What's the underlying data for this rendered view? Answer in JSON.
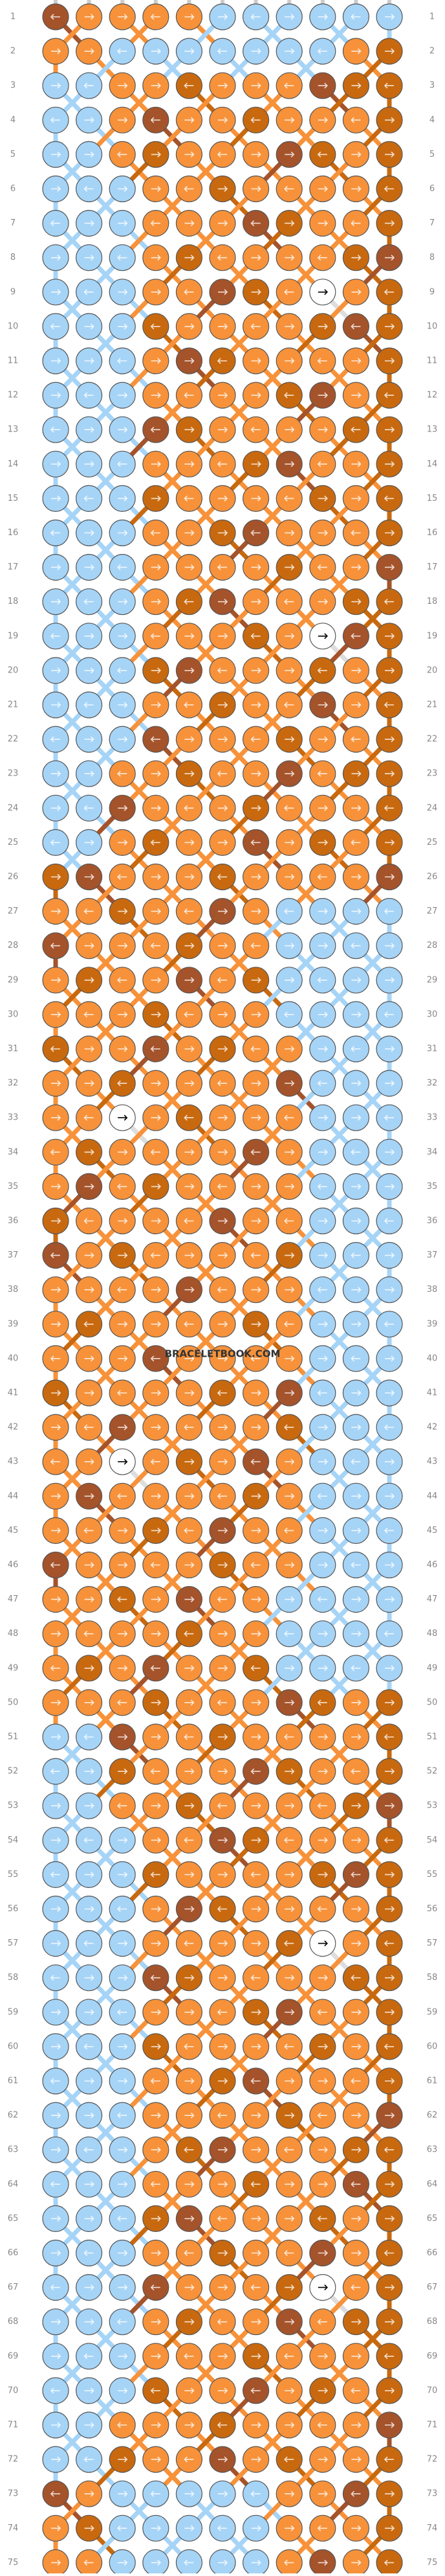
{
  "row_numbers": [
    1,
    2,
    3,
    4,
    5,
    6,
    7,
    8,
    9,
    10,
    11,
    12,
    13,
    14,
    15,
    16,
    17,
    18,
    19,
    20,
    21,
    22,
    23,
    24,
    25,
    26,
    27,
    28,
    29,
    30,
    31,
    32,
    33,
    34,
    35,
    36,
    37,
    38,
    39,
    40,
    41,
    42,
    43,
    44,
    45,
    46,
    47,
    48,
    49,
    50,
    51,
    52,
    53,
    54,
    55,
    56,
    57,
    58,
    59,
    60,
    61,
    62,
    63,
    64,
    65,
    66,
    67,
    68,
    69,
    70,
    71,
    72,
    73,
    74,
    75
  ],
  "watermark": "BRACELETBOOK.COM"
}
